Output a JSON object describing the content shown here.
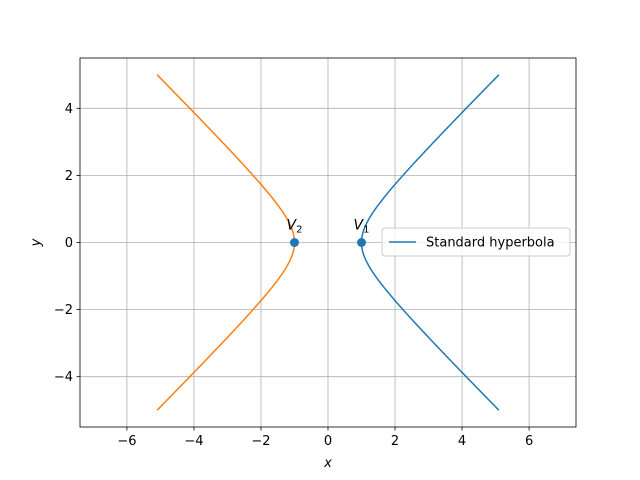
{
  "chart_data": {
    "type": "line",
    "title": "",
    "xlabel": "x",
    "ylabel": "y",
    "xlim": [
      -7.4,
      7.4
    ],
    "ylim": [
      -5.5,
      5.5
    ],
    "xticks": [
      -6,
      -4,
      -2,
      0,
      2,
      4,
      6
    ],
    "yticks": [
      -4,
      -2,
      0,
      2,
      4
    ],
    "xtick_labels": [
      "−6",
      "−4",
      "−2",
      "0",
      "2",
      "4",
      "6"
    ],
    "ytick_labels": [
      "−4",
      "−2",
      "0",
      "2",
      "4"
    ],
    "grid": true,
    "legend": {
      "placement": "center-right",
      "entries": [
        "Standard hyperbola"
      ]
    },
    "hyperbola": {
      "a": 1,
      "b": 1,
      "y_range": [
        -5,
        5
      ]
    },
    "series": [
      {
        "name": "Standard hyperbola",
        "branch": "right",
        "color": "#1f77b4"
      },
      {
        "branch": "left",
        "color": "#ff7f0e"
      }
    ],
    "points": [
      {
        "x": 1,
        "y": 0,
        "color": "#1f77b4"
      },
      {
        "x": -1,
        "y": 0,
        "color": "#1f77b4"
      }
    ],
    "annotations": [
      {
        "main": "V",
        "sub": "1",
        "x": 1,
        "y": 0
      },
      {
        "main": "V",
        "sub": "2",
        "x": -1,
        "y": 0
      }
    ]
  }
}
